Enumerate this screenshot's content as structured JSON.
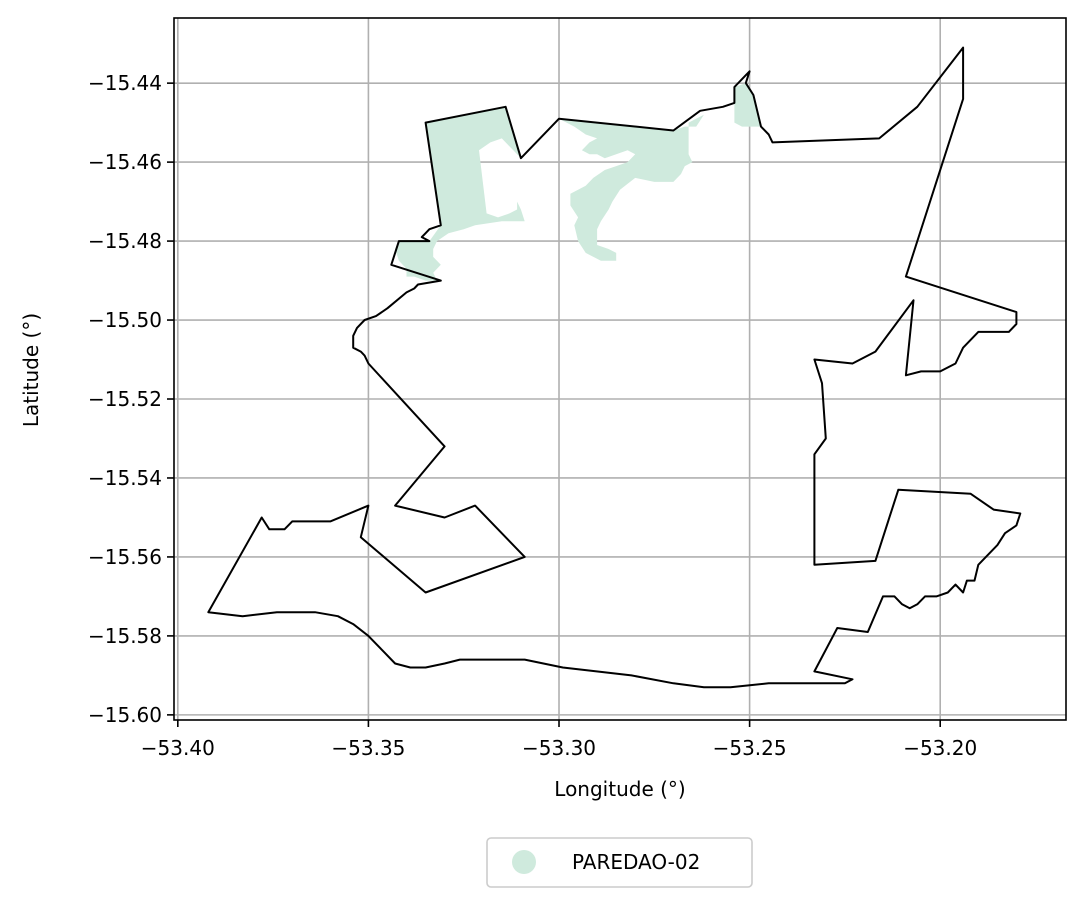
{
  "chart_data": {
    "type": "map",
    "xlabel": "Longitude (°)",
    "ylabel": "Latitude (°)",
    "xlim": [
      -53.401,
      -53.167
    ],
    "ylim": [
      -15.6013,
      -15.4235
    ],
    "x_ticks": [
      -53.4,
      -53.35,
      -53.3,
      -53.25,
      -53.2
    ],
    "x_tick_labels": [
      "−53.40",
      "−53.35",
      "−53.30",
      "−53.25",
      "−53.20"
    ],
    "y_ticks": [
      -15.44,
      -15.46,
      -15.48,
      -15.5,
      -15.52,
      -15.54,
      -15.56,
      -15.58,
      -15.6
    ],
    "y_tick_labels": [
      "−15.44",
      "−15.46",
      "−15.48",
      "−15.50",
      "−15.52",
      "−15.54",
      "−15.56",
      "−15.58",
      "−15.60"
    ],
    "grid": true,
    "legend_position": "bottom-center",
    "legend": [
      {
        "label": "PAREDAO-02",
        "color": "#cfeadd",
        "marker": "circle"
      }
    ],
    "boundary": {
      "stroke": "#000000",
      "coords": [
        [
          -53.335,
          -15.45
        ],
        [
          -53.314,
          -15.446
        ],
        [
          -53.31,
          -15.459
        ],
        [
          -53.3,
          -15.449
        ],
        [
          -53.27,
          -15.452
        ],
        [
          -53.263,
          -15.447
        ],
        [
          -53.257,
          -15.446
        ],
        [
          -53.254,
          -15.445
        ],
        [
          -53.254,
          -15.441
        ],
        [
          -53.251,
          -15.438
        ],
        [
          -53.25,
          -15.437
        ],
        [
          -53.251,
          -15.44
        ],
        [
          -53.249,
          -15.443
        ],
        [
          -53.248,
          -15.447
        ],
        [
          -53.247,
          -15.451
        ],
        [
          -53.245,
          -15.453
        ],
        [
          -53.244,
          -15.455
        ],
        [
          -53.216,
          -15.454
        ],
        [
          -53.206,
          -15.446
        ],
        [
          -53.194,
          -15.431
        ],
        [
          -53.194,
          -15.444
        ],
        [
          -53.209,
          -15.489
        ],
        [
          -53.18,
          -15.498
        ],
        [
          -53.18,
          -15.501
        ],
        [
          -53.182,
          -15.503
        ],
        [
          -53.186,
          -15.503
        ],
        [
          -53.19,
          -15.503
        ],
        [
          -53.192,
          -15.505
        ],
        [
          -53.194,
          -15.507
        ],
        [
          -53.196,
          -15.511
        ],
        [
          -53.2,
          -15.513
        ],
        [
          -53.205,
          -15.513
        ],
        [
          -53.209,
          -15.514
        ],
        [
          -53.207,
          -15.495
        ],
        [
          -53.217,
          -15.508
        ],
        [
          -53.223,
          -15.511
        ],
        [
          -53.233,
          -15.51
        ],
        [
          -53.231,
          -15.516
        ],
        [
          -53.23,
          -15.53
        ],
        [
          -53.233,
          -15.534
        ],
        [
          -53.233,
          -15.562
        ],
        [
          -53.217,
          -15.561
        ],
        [
          -53.211,
          -15.543
        ],
        [
          -53.192,
          -15.544
        ],
        [
          -53.186,
          -15.548
        ],
        [
          -53.179,
          -15.549
        ],
        [
          -53.18,
          -15.552
        ],
        [
          -53.183,
          -15.554
        ],
        [
          -53.185,
          -15.557
        ],
        [
          -53.188,
          -15.56
        ],
        [
          -53.19,
          -15.562
        ],
        [
          -53.191,
          -15.566
        ],
        [
          -53.193,
          -15.566
        ],
        [
          -53.194,
          -15.569
        ],
        [
          -53.196,
          -15.567
        ],
        [
          -53.198,
          -15.569
        ],
        [
          -53.201,
          -15.57
        ],
        [
          -53.204,
          -15.57
        ],
        [
          -53.206,
          -15.572
        ],
        [
          -53.208,
          -15.573
        ],
        [
          -53.21,
          -15.572
        ],
        [
          -53.212,
          -15.57
        ],
        [
          -53.213,
          -15.57
        ],
        [
          -53.215,
          -15.57
        ],
        [
          -53.219,
          -15.579
        ],
        [
          -53.227,
          -15.578
        ],
        [
          -53.233,
          -15.589
        ],
        [
          -53.223,
          -15.591
        ],
        [
          -53.225,
          -15.592
        ],
        [
          -53.245,
          -15.592
        ],
        [
          -53.255,
          -15.593
        ],
        [
          -53.262,
          -15.593
        ],
        [
          -53.27,
          -15.592
        ],
        [
          -53.281,
          -15.59
        ],
        [
          -53.299,
          -15.588
        ],
        [
          -53.309,
          -15.586
        ],
        [
          -53.319,
          -15.586
        ],
        [
          -53.326,
          -15.586
        ],
        [
          -53.33,
          -15.587
        ],
        [
          -53.335,
          -15.588
        ],
        [
          -53.339,
          -15.588
        ],
        [
          -53.343,
          -15.587
        ],
        [
          -53.346,
          -15.584
        ],
        [
          -53.35,
          -15.58
        ],
        [
          -53.354,
          -15.577
        ],
        [
          -53.358,
          -15.575
        ],
        [
          -53.364,
          -15.574
        ],
        [
          -53.374,
          -15.574
        ],
        [
          -53.383,
          -15.575
        ],
        [
          -53.392,
          -15.574
        ],
        [
          -53.378,
          -15.55
        ],
        [
          -53.376,
          -15.553
        ],
        [
          -53.372,
          -15.553
        ],
        [
          -53.37,
          -15.551
        ],
        [
          -53.36,
          -15.551
        ],
        [
          -53.35,
          -15.547
        ],
        [
          -53.352,
          -15.555
        ],
        [
          -53.335,
          -15.569
        ],
        [
          -53.309,
          -15.56
        ],
        [
          -53.322,
          -15.547
        ],
        [
          -53.33,
          -15.55
        ],
        [
          -53.343,
          -15.547
        ],
        [
          -53.33,
          -15.532
        ],
        [
          -53.35,
          -15.511
        ],
        [
          -53.351,
          -15.509
        ],
        [
          -53.352,
          -15.508
        ],
        [
          -53.354,
          -15.507
        ],
        [
          -53.354,
          -15.505
        ],
        [
          -53.354,
          -15.504
        ],
        [
          -53.353,
          -15.502
        ],
        [
          -53.351,
          -15.5
        ],
        [
          -53.348,
          -15.499
        ],
        [
          -53.345,
          -15.497
        ],
        [
          -53.34,
          -15.493
        ],
        [
          -53.338,
          -15.492
        ],
        [
          -53.337,
          -15.491
        ],
        [
          -53.331,
          -15.49
        ],
        [
          -53.344,
          -15.486
        ],
        [
          -53.342,
          -15.48
        ],
        [
          -53.334,
          -15.48
        ],
        [
          -53.336,
          -15.479
        ],
        [
          -53.335,
          -15.478
        ],
        [
          -53.334,
          -15.477
        ],
        [
          -53.331,
          -15.476
        ],
        [
          -53.335,
          -15.45
        ]
      ]
    },
    "regions": [
      {
        "name": "PAREDAO-02",
        "fill": "#cfeadd",
        "polygons": [
          [
            [
              -53.335,
              -15.45
            ],
            [
              -53.314,
              -15.446
            ],
            [
              -53.31,
              -15.459
            ],
            [
              -53.312,
              -15.457
            ],
            [
              -53.315,
              -15.454
            ],
            [
              -53.318,
              -15.455
            ],
            [
              -53.321,
              -15.457
            ],
            [
              -53.32,
              -15.465
            ],
            [
              -53.319,
              -15.473
            ],
            [
              -53.316,
              -15.474
            ],
            [
              -53.313,
              -15.473
            ],
            [
              -53.311,
              -15.472
            ],
            [
              -53.311,
              -15.47
            ],
            [
              -53.31,
              -15.472
            ],
            [
              -53.309,
              -15.475
            ],
            [
              -53.315,
              -15.475
            ],
            [
              -53.322,
              -15.476
            ],
            [
              -53.325,
              -15.477
            ],
            [
              -53.329,
              -15.478
            ],
            [
              -53.332,
              -15.48
            ],
            [
              -53.333,
              -15.482
            ],
            [
              -53.333,
              -15.484
            ],
            [
              -53.331,
              -15.486
            ],
            [
              -53.333,
              -15.488
            ],
            [
              -53.332,
              -15.49
            ],
            [
              -53.335,
              -15.49
            ],
            [
              -53.338,
              -15.489
            ],
            [
              -53.34,
              -15.489
            ],
            [
              -53.34,
              -15.487
            ],
            [
              -53.342,
              -15.485
            ],
            [
              -53.343,
              -15.482
            ],
            [
              -53.342,
              -15.48
            ],
            [
              -53.334,
              -15.48
            ],
            [
              -53.331,
              -15.476
            ],
            [
              -53.335,
              -15.45
            ]
          ],
          [
            [
              -53.3,
              -15.449
            ],
            [
              -53.27,
              -15.452
            ],
            [
              -53.267,
              -15.451
            ],
            [
              -53.264,
              -15.451
            ],
            [
              -53.262,
              -15.448
            ],
            [
              -53.266,
              -15.45
            ],
            [
              -53.266,
              -15.452
            ],
            [
              -53.266,
              -15.455
            ],
            [
              -53.266,
              -15.458
            ],
            [
              -53.265,
              -15.46
            ],
            [
              -53.267,
              -15.461
            ],
            [
              -53.268,
              -15.463
            ],
            [
              -53.27,
              -15.465
            ],
            [
              -53.275,
              -15.465
            ],
            [
              -53.28,
              -15.464
            ],
            [
              -53.284,
              -15.467
            ],
            [
              -53.286,
              -15.47
            ],
            [
              -53.287,
              -15.472
            ],
            [
              -53.289,
              -15.475
            ],
            [
              -53.29,
              -15.477
            ],
            [
              -53.29,
              -15.481
            ],
            [
              -53.287,
              -15.482
            ],
            [
              -53.285,
              -15.483
            ],
            [
              -53.285,
              -15.485
            ],
            [
              -53.289,
              -15.485
            ],
            [
              -53.293,
              -15.483
            ],
            [
              -53.295,
              -15.48
            ],
            [
              -53.296,
              -15.476
            ],
            [
              -53.295,
              -15.474
            ],
            [
              -53.297,
              -15.471
            ],
            [
              -53.297,
              -15.468
            ],
            [
              -53.293,
              -15.466
            ],
            [
              -53.291,
              -15.464
            ],
            [
              -53.288,
              -15.462
            ],
            [
              -53.285,
              -15.461
            ],
            [
              -53.282,
              -15.46
            ],
            [
              -53.28,
              -15.458
            ],
            [
              -53.282,
              -15.457
            ],
            [
              -53.285,
              -15.458
            ],
            [
              -53.288,
              -15.459
            ],
            [
              -53.29,
              -15.458
            ],
            [
              -53.292,
              -15.458
            ],
            [
              -53.294,
              -15.457
            ],
            [
              -53.292,
              -15.455
            ],
            [
              -53.29,
              -15.454
            ],
            [
              -53.293,
              -15.453
            ],
            [
              -53.296,
              -15.451
            ],
            [
              -53.298,
              -15.45
            ],
            [
              -53.3,
              -15.449
            ]
          ],
          [
            [
              -53.254,
              -15.441
            ],
            [
              -53.251,
              -15.44
            ],
            [
              -53.249,
              -15.443
            ],
            [
              -53.248,
              -15.447
            ],
            [
              -53.247,
              -15.451
            ],
            [
              -53.249,
              -15.451
            ],
            [
              -53.252,
              -15.451
            ],
            [
              -53.254,
              -15.45
            ],
            [
              -53.254,
              -15.446
            ],
            [
              -53.254,
              -15.441
            ]
          ]
        ]
      }
    ]
  }
}
